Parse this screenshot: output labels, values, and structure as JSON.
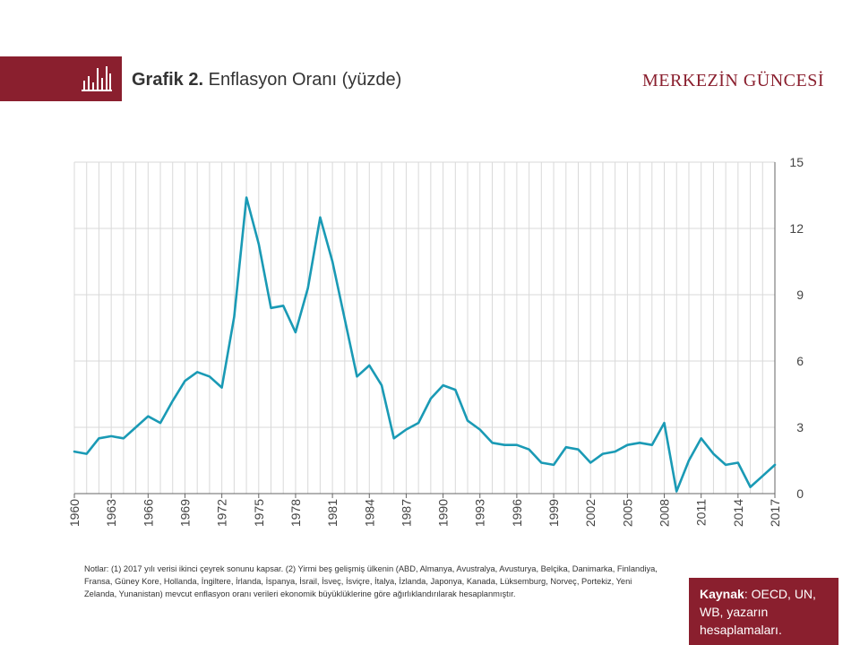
{
  "header": {
    "title_bold": "Grafik 2.",
    "title_rest": " Enflasyon Oranı (yüzde)",
    "brand": "MERKEZİN GÜNCESİ",
    "icon": "bar-chart-icon"
  },
  "notes": "Notlar: (1) 2017 yılı verisi ikinci çeyrek sonunu kapsar. (2) Yirmi beş gelişmiş ülkenin (ABD, Almanya, Avustralya, Avusturya, Belçika, Danimarka, Finlandiya, Fransa, Güney Kore, Hollanda, İngiltere, İrlanda, İspanya, İsrail, İsveç, İsviçre, İtalya, İzlanda, Japonya, Kanada, Lüksemburg, Norveç, Portekiz, Yeni Zelanda, Yunanistan) mevcut enflasyon oranı verileri ekonomik büyüklüklerine göre ağırlıklandırılarak hesaplanmıştır.",
  "source": {
    "label": "Kaynak",
    "text": ": OECD, UN, WB, yazarın hesaplamaları."
  },
  "colors": {
    "accent": "#8a1f2e",
    "line": "#1a9ab5",
    "grid": "#d9d9d9"
  },
  "chart_data": {
    "type": "line",
    "title": "",
    "xlabel": "",
    "ylabel": "",
    "xlim": [
      1960,
      2017
    ],
    "ylim": [
      0,
      15
    ],
    "y_ticks": [
      0,
      3,
      6,
      9,
      12,
      15
    ],
    "x_ticks": [
      "1960",
      "1963",
      "1966",
      "1969",
      "1972",
      "1975",
      "1978",
      "1981",
      "1984",
      "1987",
      "1990",
      "1993",
      "1996",
      "1999",
      "2002",
      "2005",
      "2008",
      "2011",
      "2014",
      "2017"
    ],
    "y_axis_position": "right",
    "grid": true,
    "series": [
      {
        "x": [
          1960,
          1961,
          1962,
          1963,
          1964,
          1965,
          1966,
          1967,
          1968,
          1969,
          1970,
          1971,
          1972,
          1973,
          1974,
          1975,
          1976,
          1977,
          1978,
          1979,
          1980,
          1981,
          1982,
          1983,
          1984,
          1985,
          1986,
          1987,
          1988,
          1989,
          1990,
          1991,
          1992,
          1993,
          1994,
          1995,
          1996,
          1997,
          1998,
          1999,
          2000,
          2001,
          2002,
          2003,
          2004,
          2005,
          2006,
          2007,
          2008,
          2009,
          2010,
          2011,
          2012,
          2013,
          2014,
          2015,
          2016,
          2017
        ],
        "values": [
          1.9,
          1.8,
          2.5,
          2.6,
          2.5,
          3.0,
          3.5,
          3.2,
          4.2,
          5.1,
          5.5,
          5.3,
          4.8,
          8.0,
          13.4,
          11.3,
          8.4,
          8.5,
          7.3,
          9.3,
          12.5,
          10.5,
          7.9,
          5.3,
          5.8,
          4.9,
          2.5,
          2.9,
          3.2,
          4.3,
          4.9,
          4.7,
          3.3,
          2.9,
          2.3,
          2.2,
          2.2,
          2.0,
          1.4,
          1.3,
          2.1,
          2.0,
          1.4,
          1.8,
          1.9,
          2.2,
          2.3,
          2.2,
          3.2,
          0.1,
          1.5,
          2.5,
          1.8,
          1.3,
          1.4,
          0.3,
          0.8,
          1.3
        ]
      }
    ]
  }
}
